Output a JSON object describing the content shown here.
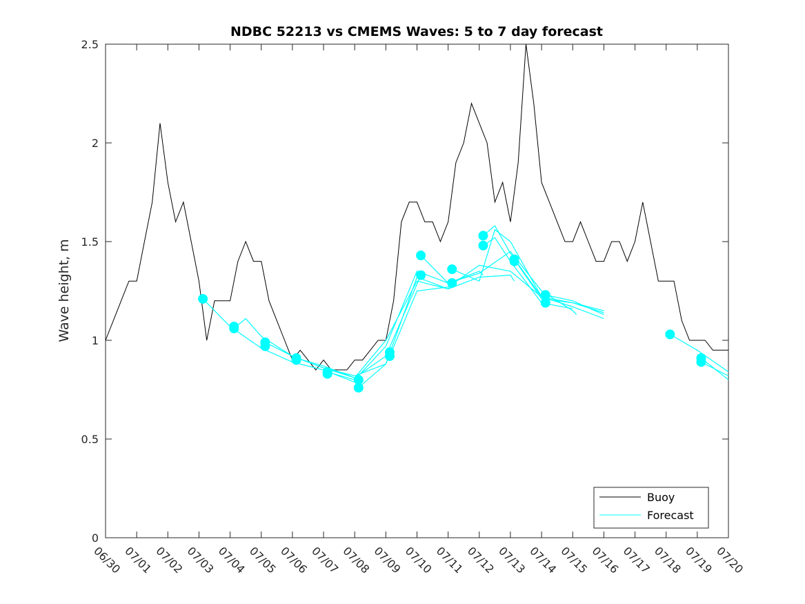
{
  "chart_data": {
    "type": "line",
    "title": "NDBC 52213 vs CMEMS Waves: 5 to 7 day forecast",
    "xlabel": "",
    "ylabel": "Wave height, m",
    "xlim": [
      "06/30",
      "07/20"
    ],
    "ylim": [
      0,
      2.5
    ],
    "x_ticks": [
      "06/30",
      "07/01",
      "07/02",
      "07/03",
      "07/04",
      "07/05",
      "07/06",
      "07/07",
      "07/08",
      "07/09",
      "07/10",
      "07/11",
      "07/12",
      "07/13",
      "07/14",
      "07/15",
      "07/16",
      "07/17",
      "07/18",
      "07/19",
      "07/20"
    ],
    "y_ticks": [
      0,
      0.5,
      1,
      1.5,
      2,
      2.5
    ],
    "y_tick_labels": [
      "0",
      "0.5",
      "1",
      "1.5",
      "2",
      "2.5"
    ],
    "grid": false,
    "legend_position": "bottom-right",
    "colors": {
      "buoy": "#000000",
      "forecast": "#00ffff"
    },
    "series": [
      {
        "name": "Buoy",
        "kind": "observed",
        "x": [
          "06/30 00:00",
          "06/30 06:00",
          "06/30 12:00",
          "06/30 18:00",
          "07/01 00:00",
          "07/01 06:00",
          "07/01 12:00",
          "07/01 18:00",
          "07/02 00:00",
          "07/02 06:00",
          "07/02 12:00",
          "07/02 18:00",
          "07/03 00:00",
          "07/03 06:00",
          "07/03 12:00",
          "07/03 18:00",
          "07/04 00:00",
          "07/04 06:00",
          "07/04 12:00",
          "07/04 18:00",
          "07/05 00:00",
          "07/05 06:00",
          "07/05 12:00",
          "07/05 18:00",
          "07/06 00:00",
          "07/06 06:00",
          "07/06 12:00",
          "07/06 18:00",
          "07/07 00:00",
          "07/07 06:00",
          "07/07 12:00",
          "07/07 18:00",
          "07/08 00:00",
          "07/08 06:00",
          "07/08 12:00",
          "07/08 18:00",
          "07/09 00:00",
          "07/09 06:00",
          "07/09 12:00",
          "07/09 18:00",
          "07/10 00:00",
          "07/10 06:00",
          "07/10 12:00",
          "07/10 18:00",
          "07/11 00:00",
          "07/11 06:00",
          "07/11 12:00",
          "07/11 18:00",
          "07/12 00:00",
          "07/12 06:00",
          "07/12 12:00",
          "07/12 18:00",
          "07/13 00:00",
          "07/13 06:00",
          "07/13 12:00",
          "07/13 18:00",
          "07/14 00:00",
          "07/14 06:00",
          "07/14 12:00",
          "07/14 18:00",
          "07/15 00:00",
          "07/15 06:00",
          "07/15 12:00",
          "07/15 18:00",
          "07/16 00:00",
          "07/16 06:00",
          "07/16 12:00",
          "07/16 18:00",
          "07/17 00:00",
          "07/17 06:00",
          "07/17 12:00",
          "07/17 18:00",
          "07/18 00:00",
          "07/18 06:00",
          "07/18 12:00",
          "07/18 18:00",
          "07/19 00:00",
          "07/19 06:00",
          "07/19 12:00",
          "07/19 18:00",
          "07/20 00:00"
        ],
        "y": [
          1.0,
          1.1,
          1.2,
          1.3,
          1.3,
          1.5,
          1.7,
          2.1,
          1.8,
          1.6,
          1.7,
          1.5,
          1.3,
          1.0,
          1.2,
          1.2,
          1.2,
          1.4,
          1.5,
          1.4,
          1.4,
          1.2,
          1.1,
          1.0,
          0.9,
          0.95,
          0.9,
          0.85,
          0.9,
          0.85,
          0.85,
          0.85,
          0.9,
          0.9,
          0.95,
          1.0,
          1.0,
          1.2,
          1.6,
          1.7,
          1.7,
          1.6,
          1.6,
          1.5,
          1.6,
          1.9,
          2.0,
          2.2,
          2.1,
          2.0,
          1.7,
          1.8,
          1.6,
          1.9,
          2.5,
          2.2,
          1.8,
          1.7,
          1.6,
          1.5,
          1.5,
          1.6,
          1.5,
          1.4,
          1.4,
          1.5,
          1.5,
          1.4,
          1.5,
          1.7,
          1.5,
          1.3,
          1.3,
          1.3,
          1.1,
          1.0,
          1.0,
          1.0,
          0.95,
          0.95,
          0.95
        ]
      },
      {
        "name": "Forecast",
        "kind": "forecast",
        "runs": [
          {
            "x": [
              "07/03 03:00",
              "07/04 00:00",
              "07/05 00:00",
              "07/06 00:00",
              "07/07 00:00",
              "07/08 03:00"
            ],
            "y": [
              1.21,
              1.07,
              0.96,
              0.89,
              0.85,
              0.78
            ]
          },
          {
            "x": [
              "07/04 03:00",
              "07/04 12:00",
              "07/05 00:00",
              "07/06 00:00",
              "07/07 00:00",
              "07/08 00:00",
              "07/09 00:00",
              "07/09 03:00"
            ],
            "y": [
              1.06,
              1.11,
              1.02,
              0.92,
              0.86,
              0.82,
              0.88,
              0.93
            ]
          },
          {
            "x": [
              "07/05 03:00",
              "07/06 00:00",
              "07/07 00:00",
              "07/08 00:00",
              "07/09 00:00",
              "07/10 03:00"
            ],
            "y": [
              0.99,
              0.92,
              0.86,
              0.81,
              0.92,
              1.33
            ]
          },
          {
            "x": [
              "07/06 03:00",
              "07/07 00:00",
              "07/08 00:00",
              "07/09 00:00",
              "07/10 00:00",
              "07/11 00:00",
              "07/11 03:00"
            ],
            "y": [
              0.91,
              0.87,
              0.81,
              1.0,
              1.3,
              1.26,
              1.29
            ]
          },
          {
            "x": [
              "07/07 03:00",
              "07/08 00:00",
              "07/09 00:00",
              "07/10 00:00",
              "07/11 00:00",
              "07/12 00:00",
              "07/12 03:00"
            ],
            "y": [
              0.84,
              0.8,
              0.97,
              1.35,
              1.29,
              1.35,
              1.33
            ]
          },
          {
            "x": [
              "07/08 03:00",
              "07/09 00:00",
              "07/10 00:00",
              "07/11 00:00",
              "07/12 00:00",
              "07/13 00:00",
              "07/13 03:00"
            ],
            "y": [
              0.76,
              0.88,
              1.32,
              1.26,
              1.32,
              1.33,
              1.3
            ]
          },
          {
            "x": [
              "07/09 03:00",
              "07/10 00:00",
              "07/11 00:00",
              "07/12 00:00",
              "07/13 00:00",
              "07/14 00:00",
              "07/14 03:00"
            ],
            "y": [
              0.92,
              1.25,
              1.27,
              1.38,
              1.35,
              1.22,
              1.19
            ]
          },
          {
            "x": [
              "07/10 03:00",
              "07/11 00:00",
              "07/12 00:00",
              "07/13 00:00",
              "07/14 00:00",
              "07/15 00:00",
              "07/15 03:00"
            ],
            "y": [
              1.43,
              1.29,
              1.34,
              1.45,
              1.25,
              1.15,
              1.13
            ]
          },
          {
            "x": [
              "07/11 03:00",
              "07/12 00:00",
              "07/12 12:00",
              "07/13 00:00",
              "07/14 00:00",
              "07/15 00:00",
              "07/16 00:00"
            ],
            "y": [
              1.36,
              1.3,
              1.56,
              1.5,
              1.22,
              1.17,
              1.11
            ]
          },
          {
            "x": [
              "07/12 03:00",
              "07/12 12:00",
              "07/13 00:00",
              "07/14 00:00",
              "07/15 00:00",
              "07/16 00:00"
            ],
            "y": [
              1.53,
              1.58,
              1.44,
              1.22,
              1.19,
              1.14
            ]
          },
          {
            "x": [
              "07/12 03:00",
              "07/12 12:00",
              "07/13 00:00",
              "07/14 00:00",
              "07/15 00:00"
            ],
            "y": [
              1.48,
              1.52,
              1.4,
              1.19,
              1.16
            ]
          },
          {
            "x": [
              "07/13 03:00",
              "07/14 00:00",
              "07/15 00:00",
              "07/16 00:00"
            ],
            "y": [
              1.41,
              1.21,
              1.19,
              1.15
            ]
          },
          {
            "x": [
              "07/14 03:00",
              "07/15 00:00",
              "07/16 00:00"
            ],
            "y": [
              1.23,
              1.2,
              1.13
            ]
          },
          {
            "x": [
              "07/18 03:00",
              "07/19 00:00",
              "07/20 00:00"
            ],
            "y": [
              1.03,
              0.95,
              0.84
            ]
          },
          {
            "x": [
              "07/19 03:00",
              "07/20 00:00"
            ],
            "y": [
              0.91,
              0.8
            ]
          },
          {
            "x": [
              "07/19 03:00",
              "07/20 00:00"
            ],
            "y": [
              0.89,
              0.82
            ]
          }
        ],
        "markers": [
          {
            "x": "07/03 03:00",
            "y": 1.21
          },
          {
            "x": "07/04 03:00",
            "y": 1.07
          },
          {
            "x": "07/04 03:00",
            "y": 1.06
          },
          {
            "x": "07/05 03:00",
            "y": 0.99
          },
          {
            "x": "07/05 03:00",
            "y": 0.97
          },
          {
            "x": "07/06 03:00",
            "y": 0.91
          },
          {
            "x": "07/06 03:00",
            "y": 0.9
          },
          {
            "x": "07/07 03:00",
            "y": 0.84
          },
          {
            "x": "07/07 03:00",
            "y": 0.83
          },
          {
            "x": "07/08 03:00",
            "y": 0.8
          },
          {
            "x": "07/08 03:00",
            "y": 0.76
          },
          {
            "x": "07/09 03:00",
            "y": 0.94
          },
          {
            "x": "07/09 03:00",
            "y": 0.92
          },
          {
            "x": "07/10 03:00",
            "y": 1.43
          },
          {
            "x": "07/10 03:00",
            "y": 1.33
          },
          {
            "x": "07/11 03:00",
            "y": 1.36
          },
          {
            "x": "07/11 03:00",
            "y": 1.29
          },
          {
            "x": "07/12 03:00",
            "y": 1.53
          },
          {
            "x": "07/12 03:00",
            "y": 1.48
          },
          {
            "x": "07/13 03:00",
            "y": 1.41
          },
          {
            "x": "07/13 03:00",
            "y": 1.4
          },
          {
            "x": "07/14 03:00",
            "y": 1.23
          },
          {
            "x": "07/14 03:00",
            "y": 1.19
          },
          {
            "x": "07/18 03:00",
            "y": 1.03
          },
          {
            "x": "07/19 03:00",
            "y": 0.91
          },
          {
            "x": "07/19 03:00",
            "y": 0.89
          }
        ]
      }
    ]
  }
}
